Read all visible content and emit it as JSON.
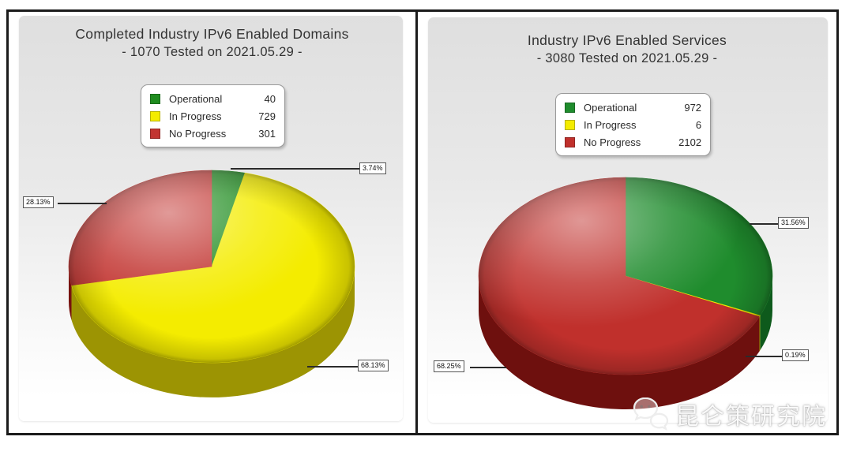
{
  "watermark": {
    "text": "昆仑策研究院",
    "icon": "chat-bubbles-icon"
  },
  "colors": {
    "frame": "#1b1b1b",
    "panel_top": "#dfdfdf",
    "operational_green": "#1f8c26",
    "in_progress_yellow": "#f4ec00",
    "no_progress_red": "#c23430"
  },
  "chart_data": [
    {
      "type": "pie",
      "style": "3d",
      "title": "Completed Industry IPv6 Enabled Domains",
      "subtitle": "- 1070 Tested on 2021.05.29 -",
      "total_tested": 1070,
      "test_date": "2021.05.29",
      "legend_position": "top-center",
      "slices": [
        {
          "label": "Operational",
          "value": 40,
          "pct_label": "3.74%",
          "color": "#1f8c1f",
          "side_color": "#10581a"
        },
        {
          "label": "In Progress",
          "value": 729,
          "pct_label": "68.13%",
          "color": "#f4ec00",
          "side_color": "#9c9403"
        },
        {
          "label": "No Progress",
          "value": 301,
          "pct_label": "28.13%",
          "color": "#c23531",
          "side_color": "#77120f"
        }
      ]
    },
    {
      "type": "pie",
      "style": "3d",
      "title": "Industry IPv6 Enabled Services",
      "subtitle": "- 3080 Tested on 2021.05.29 -",
      "total_tested": 3080,
      "test_date": "2021.05.29",
      "legend_position": "top-center",
      "slices": [
        {
          "label": "Operational",
          "value": 972,
          "pct_label": "31.56%",
          "color": "#1f8c2d",
          "side_color": "#0e5a1c"
        },
        {
          "label": "In Progress",
          "value": 6,
          "pct_label": "0.19%",
          "color": "#f4ec00",
          "side_color": "#9c9403"
        },
        {
          "label": "No Progress",
          "value": 2102,
          "pct_label": "68.25%",
          "color": "#c0302c",
          "side_color": "#6e100e"
        }
      ]
    }
  ]
}
